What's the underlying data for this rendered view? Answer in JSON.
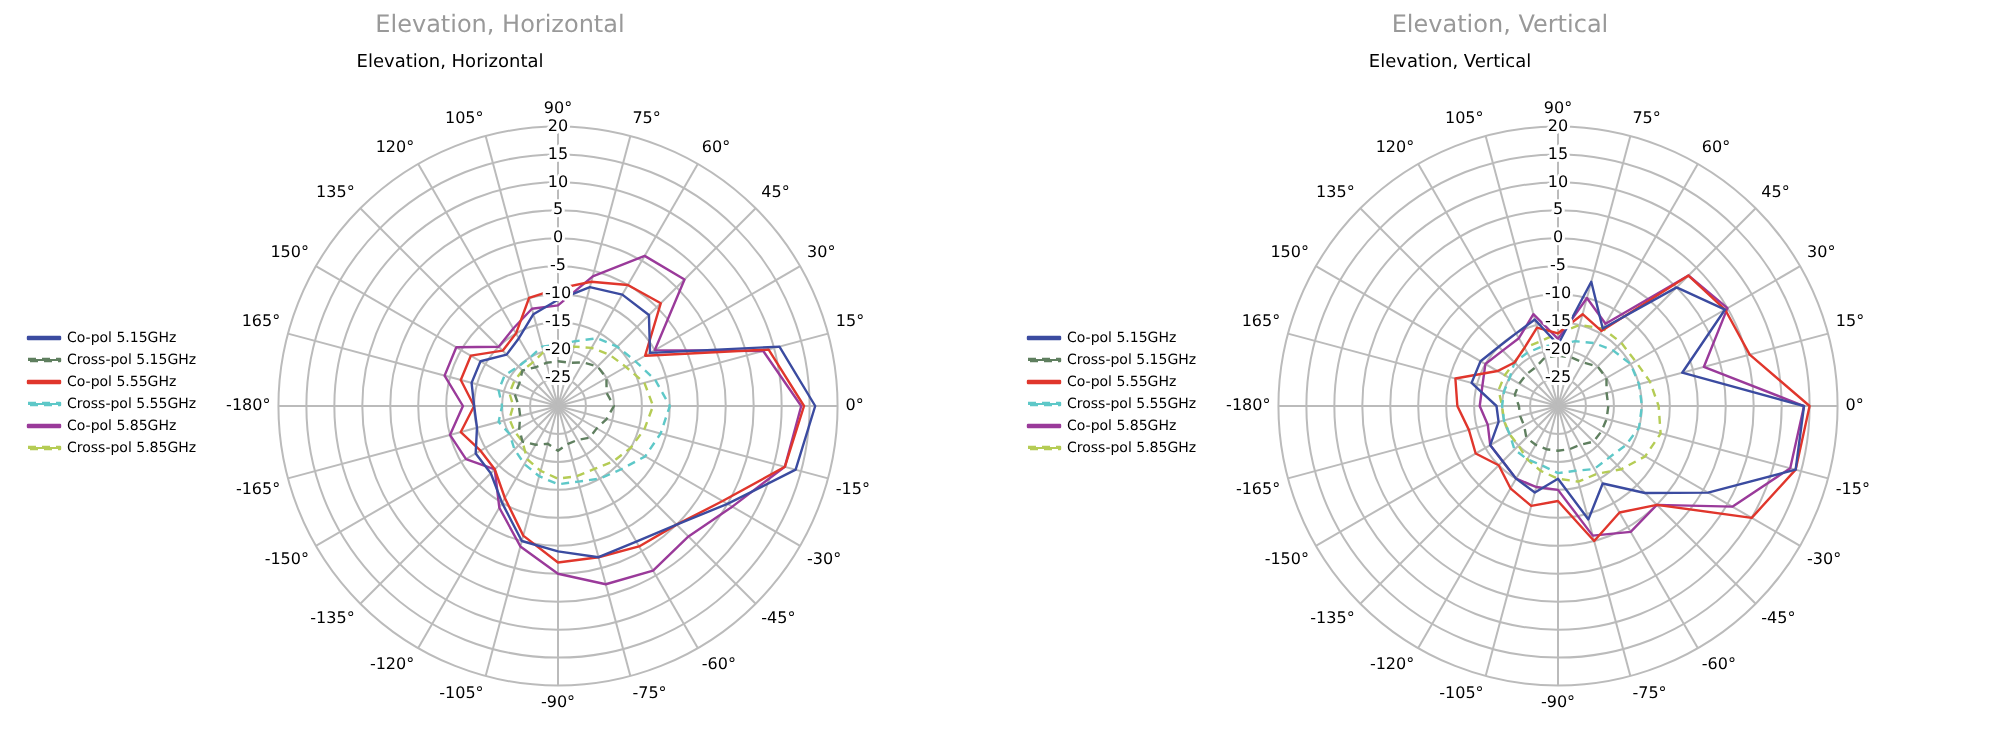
{
  "chart_data": [
    {
      "type": "radar",
      "title": "Elevation, Horizontal",
      "subtitle": "Elevation, Horizontal",
      "categories": [
        "90°",
        "75°",
        "60°",
        "45°",
        "30°",
        "15°",
        "0°",
        "-15°",
        "-30°",
        "-45°",
        "-60°",
        "-75°",
        "-90°",
        "-105°",
        "-120°",
        "-135°",
        "-150°",
        "-165°",
        "-180°",
        "165°",
        "150°",
        "135°",
        "120°",
        "105°"
      ],
      "ylim": [
        -30,
        20
      ],
      "yticks": [
        -25,
        -20,
        -15,
        -10,
        -5,
        0,
        5,
        10,
        15,
        20
      ],
      "grid": true,
      "legend": "left",
      "marker": "none",
      "series": [
        {
          "name": "Co-pol 5.15GHz",
          "color": "#3b4ba0",
          "line_style": "solid",
          "values": [
            -11,
            -8,
            -7,
            -7,
            -11,
            11,
            16,
            14,
            5,
            0,
            -2,
            -2,
            -4,
            -5,
            -10,
            -13,
            -13,
            -15,
            -15,
            -14,
            -14,
            -17,
            -16,
            -13
          ]
        },
        {
          "name": "Cross-pol 5.15GHz",
          "color": "#5f7f5f",
          "line_style": "dashed",
          "values": [
            -22,
            -22,
            -21,
            -20,
            -20,
            -21,
            -20,
            -21,
            -22,
            -22,
            -23,
            -23,
            -22,
            -23,
            -22,
            -21,
            -22,
            -23,
            -23,
            -22,
            -22,
            -21,
            -22,
            -22
          ]
        },
        {
          "name": "Co-pol 5.55GHz",
          "color": "#e0362c",
          "line_style": "solid",
          "values": [
            -9,
            -7,
            -5,
            -4,
            -12,
            9,
            14,
            12,
            4,
            0,
            -1,
            -2,
            -2,
            -6,
            -11,
            -14,
            -14,
            -12,
            -15,
            -12,
            -12,
            -16,
            -15,
            -10
          ]
        },
        {
          "name": "Cross-pol 5.55GHz",
          "color": "#5ec8c8",
          "line_style": "dashed",
          "values": [
            -19,
            -18,
            -16,
            -15,
            -14,
            -12,
            -10,
            -11,
            -12,
            -14,
            -15,
            -16,
            -16,
            -17,
            -18,
            -19,
            -20,
            -19,
            -20,
            -19,
            -19,
            -20,
            -20,
            -19
          ]
        },
        {
          "name": "Co-pol 5.85GHz",
          "color": "#9a3a9a",
          "line_style": "solid",
          "values": [
            -12,
            -6,
            1,
            2,
            -10,
            8,
            13.5,
            12,
            6,
            3,
            4,
            3,
            0,
            -4,
            -9,
            -14,
            -11,
            -10,
            -13,
            -9,
            -9,
            -15,
            -14,
            -12
          ]
        },
        {
          "name": "Cross-pol 5.85GHz",
          "color": "#b5cc55",
          "line_style": "dashed",
          "values": [
            -20,
            -19,
            -18,
            -17,
            -16,
            -14,
            -13,
            -14,
            -15,
            -16,
            -17,
            -17,
            -17,
            -18,
            -19,
            -21,
            -21,
            -21,
            -22,
            -21,
            -21,
            -21,
            -21,
            -20
          ]
        }
      ]
    },
    {
      "type": "radar",
      "title": "Elevation, Vertical",
      "subtitle": "Elevation, Vertical",
      "categories": [
        "90°",
        "75°",
        "60°",
        "45°",
        "30°",
        "15°",
        "0°",
        "-15°",
        "-30°",
        "-45°",
        "-60°",
        "-75°",
        "-90°",
        "-105°",
        "-120°",
        "-135°",
        "-150°",
        "-165°",
        "-180°",
        "165°",
        "150°",
        "135°",
        "120°",
        "105°"
      ],
      "ylim": [
        -30,
        20
      ],
      "yticks": [
        -25,
        -20,
        -15,
        -10,
        -5,
        0,
        5,
        10,
        15,
        20
      ],
      "grid": true,
      "legend": "left",
      "marker": "none",
      "series": [
        {
          "name": "Co-pol 5.15GHz",
          "color": "#3b4ba0",
          "line_style": "solid",
          "values": [
            -19,
            -7,
            -14,
            0,
            4.5,
            -7,
            14,
            14,
            1,
            -8,
            -14,
            -9,
            -17,
            -14,
            -15,
            -16,
            -16,
            -19,
            -19,
            -14,
            -14,
            -15,
            -15,
            -14
          ]
        },
        {
          "name": "Cross-pol 5.15GHz",
          "color": "#5f7f5f",
          "line_style": "dashed",
          "values": [
            -21,
            -21,
            -21,
            -20,
            -20,
            -21,
            -21,
            -21,
            -21,
            -21,
            -22,
            -22,
            -22,
            -22,
            -22,
            -22,
            -23,
            -23,
            -23,
            -22,
            -22,
            -22,
            -22,
            -21
          ]
        },
        {
          "name": "Co-pol 5.55GHz",
          "color": "#e0362c",
          "line_style": "solid",
          "values": [
            -17,
            -13,
            -14.5,
            3,
            4.5,
            5.5,
            15,
            14,
            10,
            -5,
            -8,
            -5,
            -13,
            -11.5,
            -13,
            -15,
            -13,
            -13.5,
            -12,
            -11,
            -17.5,
            -19,
            -18,
            -15.5
          ]
        },
        {
          "name": "Cross-pol 5.55GHz",
          "color": "#5ec8c8",
          "line_style": "dashed",
          "values": [
            -19,
            -18,
            -17,
            -16,
            -15,
            -15,
            -15,
            -15,
            -16,
            -17,
            -17,
            -18,
            -18,
            -19,
            -19,
            -19,
            -20,
            -20,
            -20,
            -20,
            -20,
            -19,
            -19,
            -19
          ]
        },
        {
          "name": "Co-pol 5.85GHz",
          "color": "#9a3a9a",
          "line_style": "solid",
          "values": [
            -18,
            -10,
            -13,
            3,
            5,
            -3,
            14,
            13,
            6,
            -5,
            -4,
            -6,
            -15,
            -15,
            -15,
            -16,
            -16,
            -17,
            -16,
            -16,
            -15,
            -16,
            -16,
            -13
          ]
        },
        {
          "name": "Cross-pol 5.85GHz",
          "color": "#b5cc55",
          "line_style": "dashed",
          "values": [
            -17,
            -15,
            -14,
            -14,
            -14,
            -13,
            -12,
            -11,
            -12,
            -14,
            -16,
            -16,
            -17,
            -18,
            -19,
            -20,
            -20,
            -20,
            -20,
            -19,
            -19,
            -19,
            -18,
            -18
          ]
        }
      ]
    }
  ]
}
